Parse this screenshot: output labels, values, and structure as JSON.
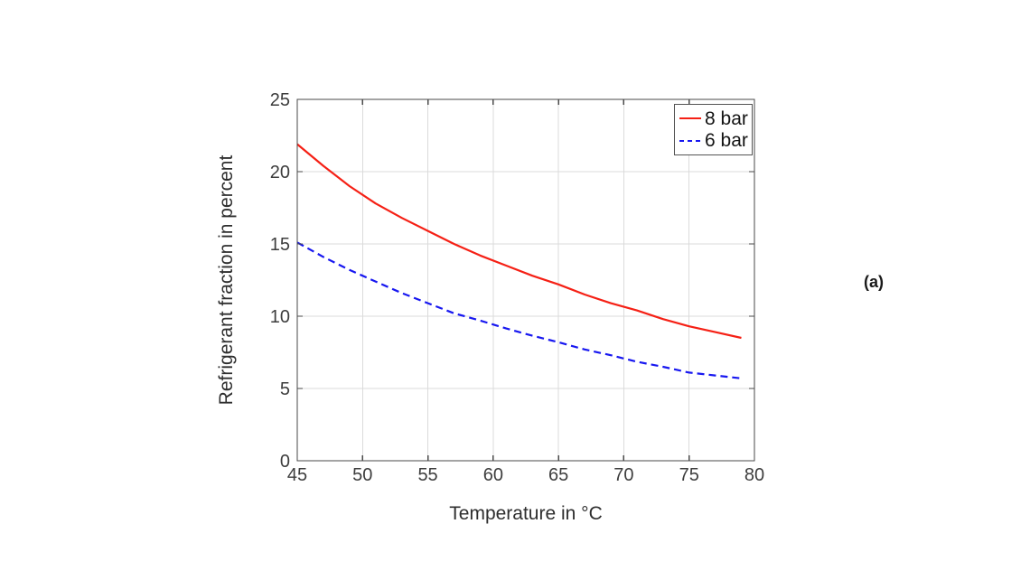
{
  "page": {
    "background": "#ffffff",
    "text_color": "#3d3d3d"
  },
  "panel_label": "(a)",
  "chart_data": {
    "type": "line",
    "title": "",
    "xlabel": "Temperature in °C",
    "ylabel": "Refrigerant fraction in percent",
    "xlim": [
      45,
      80
    ],
    "ylim": [
      0,
      25
    ],
    "xticks": [
      45,
      50,
      55,
      60,
      65,
      70,
      75,
      80
    ],
    "yticks": [
      0,
      5,
      10,
      15,
      20,
      25
    ],
    "grid": true,
    "grid_color": "#dbdbdb",
    "axis_color": "#4a4a4a",
    "legend_position": "top-right",
    "series": [
      {
        "name": "8 bar",
        "color": "#f52015",
        "style": "solid",
        "x": [
          45,
          47,
          49,
          51,
          53,
          55,
          57,
          59,
          61,
          63,
          65,
          67,
          69,
          71,
          73,
          75,
          77,
          79
        ],
        "y": [
          21.9,
          20.4,
          19.0,
          17.8,
          16.8,
          15.9,
          15.0,
          14.2,
          13.5,
          12.8,
          12.2,
          11.5,
          10.9,
          10.4,
          9.8,
          9.3,
          8.9,
          8.5
        ]
      },
      {
        "name": "6 bar",
        "color": "#1717f0",
        "style": "dashed",
        "x": [
          45,
          47,
          49,
          51,
          53,
          55,
          57,
          59,
          61,
          63,
          65,
          67,
          69,
          71,
          73,
          75,
          77,
          79
        ],
        "y": [
          15.1,
          14.1,
          13.2,
          12.4,
          11.6,
          10.9,
          10.2,
          9.7,
          9.15,
          8.65,
          8.2,
          7.7,
          7.3,
          6.85,
          6.5,
          6.1,
          5.9,
          5.7
        ]
      }
    ]
  }
}
